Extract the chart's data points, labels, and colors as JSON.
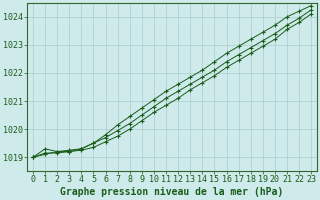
{
  "bg_color": "#ceeaea",
  "grid_color": "#aacccc",
  "line_color": "#1a5c1a",
  "marker_color": "#1a5c1a",
  "xlabel": "Graphe pression niveau de la mer (hPa)",
  "ylim": [
    1018.5,
    1024.5
  ],
  "xlim": [
    -0.5,
    23.5
  ],
  "yticks": [
    1019,
    1020,
    1021,
    1022,
    1023,
    1024
  ],
  "xticks": [
    0,
    1,
    2,
    3,
    4,
    5,
    6,
    7,
    8,
    9,
    10,
    11,
    12,
    13,
    14,
    15,
    16,
    17,
    18,
    19,
    20,
    21,
    22,
    23
  ],
  "series": [
    [
      1019.0,
      1019.1,
      1019.2,
      1019.2,
      1019.25,
      1019.35,
      1019.55,
      1019.75,
      1020.0,
      1020.3,
      1020.6,
      1020.85,
      1021.1,
      1021.4,
      1021.65,
      1021.9,
      1022.2,
      1022.45,
      1022.7,
      1022.95,
      1023.2,
      1023.55,
      1023.8,
      1024.1
    ],
    [
      1019.0,
      1019.15,
      1019.15,
      1019.2,
      1019.3,
      1019.5,
      1019.7,
      1019.95,
      1020.2,
      1020.5,
      1020.8,
      1021.1,
      1021.35,
      1021.6,
      1021.85,
      1022.1,
      1022.4,
      1022.65,
      1022.9,
      1023.15,
      1023.4,
      1023.7,
      1023.95,
      1024.25
    ],
    [
      1019.0,
      1019.3,
      1019.2,
      1019.25,
      1019.3,
      1019.5,
      1019.8,
      1020.15,
      1020.45,
      1020.75,
      1021.05,
      1021.35,
      1021.6,
      1021.85,
      1022.1,
      1022.4,
      1022.7,
      1022.95,
      1023.2,
      1023.45,
      1023.7,
      1024.0,
      1024.2,
      1024.4
    ]
  ],
  "tick_fontsize": 6,
  "xlabel_fontsize": 7,
  "tick_color": "#1a5c1a",
  "spine_color": "#336633"
}
